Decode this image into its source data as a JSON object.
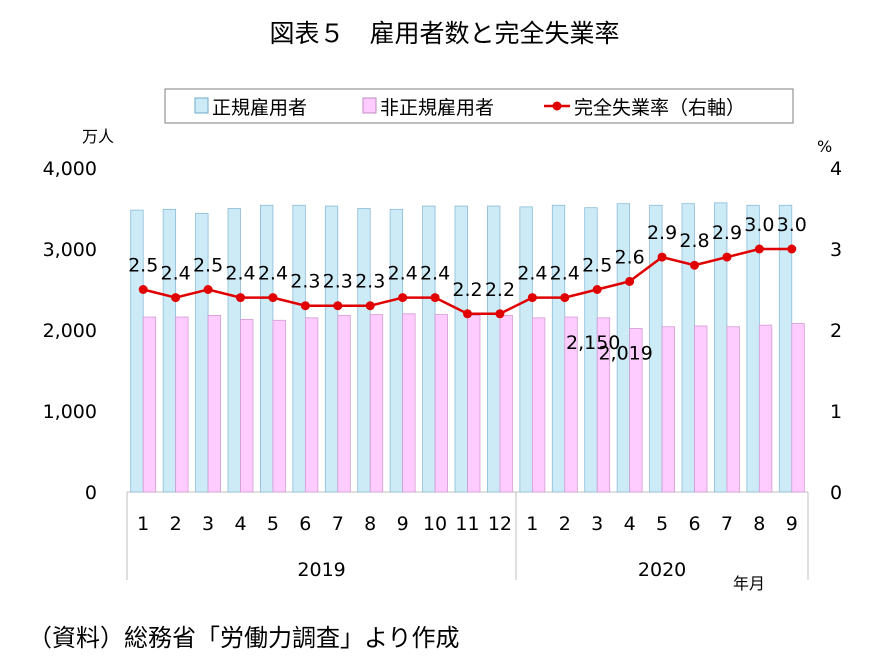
{
  "title": "図表５　雇用者数と完全失業率",
  "source": "（資料）総務省「労働力調査」より作成",
  "legend": {
    "regular": "正規雇用者",
    "nonregular": "非正規雇用者",
    "rate": "完全失業率（右軸）"
  },
  "y_left_unit": "万人",
  "y_right_unit": "%",
  "x_unit": "年月",
  "chart_data": {
    "type": "bar",
    "title": "図表５　雇用者数と完全失業率",
    "xlabel": "年月",
    "ylabel": "万人",
    "y2label": "%",
    "ylim": [
      0,
      4000
    ],
    "y2lim": [
      0,
      4
    ],
    "yticks": [
      "0",
      "1,000",
      "2,000",
      "3,000",
      "4,000"
    ],
    "y2ticks": [
      "0",
      "1",
      "2",
      "3",
      "4"
    ],
    "legend_position": "top",
    "grid": false,
    "groups": [
      {
        "label": "2019",
        "count": 12
      },
      {
        "label": "2020",
        "count": 9
      }
    ],
    "categories": [
      "1",
      "2",
      "3",
      "4",
      "5",
      "6",
      "7",
      "8",
      "9",
      "10",
      "11",
      "12",
      "1",
      "2",
      "3",
      "4",
      "5",
      "6",
      "7",
      "8",
      "9"
    ],
    "series": [
      {
        "name": "正規雇用者",
        "type": "bar",
        "axis": "left",
        "color": "#CCEBF7",
        "values": [
          3480,
          3490,
          3440,
          3500,
          3540,
          3540,
          3530,
          3500,
          3490,
          3530,
          3530,
          3530,
          3520,
          3540,
          3510,
          3560,
          3540,
          3560,
          3570,
          3540,
          3540
        ]
      },
      {
        "name": "非正規雇用者",
        "type": "bar",
        "axis": "left",
        "color": "#FFCCFF",
        "values": [
          2160,
          2160,
          2180,
          2130,
          2120,
          2150,
          2180,
          2190,
          2200,
          2190,
          2180,
          2180,
          2150,
          2160,
          2150,
          2019,
          2040,
          2050,
          2040,
          2060,
          2080
        ]
      },
      {
        "name": "完全失業率（右軸）",
        "type": "line",
        "axis": "right",
        "color": "#E00000",
        "values": [
          2.5,
          2.4,
          2.5,
          2.4,
          2.4,
          2.3,
          2.3,
          2.3,
          2.4,
          2.4,
          2.2,
          2.2,
          2.4,
          2.4,
          2.5,
          2.6,
          2.9,
          2.8,
          2.9,
          3.0,
          3.0
        ]
      }
    ],
    "data_labels": {
      "rate": [
        "2.5",
        "2.4",
        "2.5",
        "2.4",
        "2.4",
        "2.3",
        "2.3",
        "2.3",
        "2.4",
        "2.4",
        "2.2",
        "2.2",
        "2.4",
        "2.4",
        "2.5",
        "2.6",
        "2.9",
        "2.8",
        "2.9",
        "3.0",
        "3.0"
      ],
      "nonregular": [
        {
          "index": 14,
          "text": "2,150"
        },
        {
          "index": 15,
          "text": "2,019"
        }
      ]
    }
  }
}
